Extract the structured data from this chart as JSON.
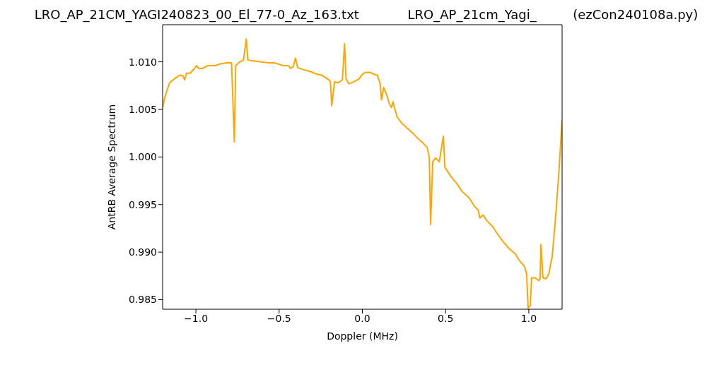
{
  "chart_data": {
    "type": "line",
    "title": "LRO_AP_21CM_YAGI240823_00_El_77-0_Az_163.txt            LRO_AP_21cm_Yagi_         (ezCon240108a.py)",
    "xlabel": "Doppler (MHz)",
    "ylabel": "AntRB Average Spectrum",
    "x": [
      -1.2,
      -1.188,
      -1.158,
      -1.115,
      -1.094,
      -1.077,
      -1.068,
      -1.056,
      -1.034,
      -1.009,
      -0.996,
      -0.983,
      -0.962,
      -0.927,
      -0.885,
      -0.85,
      -0.816,
      -0.786,
      -0.769,
      -0.761,
      -0.735,
      -0.714,
      -0.697,
      -0.688,
      -0.658,
      -0.615,
      -0.56,
      -0.53,
      -0.474,
      -0.444,
      -0.432,
      -0.415,
      -0.402,
      -0.389,
      -0.359,
      -0.316,
      -0.274,
      -0.244,
      -0.201,
      -0.192,
      -0.184,
      -0.167,
      -0.145,
      -0.12,
      -0.107,
      -0.098,
      -0.081,
      -0.051,
      -0.021,
      0.0,
      0.021,
      0.047,
      0.068,
      0.09,
      0.107,
      0.115,
      0.128,
      0.145,
      0.162,
      0.175,
      0.184,
      0.209,
      0.239,
      0.278,
      0.303,
      0.342,
      0.363,
      0.389,
      0.402,
      0.41,
      0.423,
      0.44,
      0.462,
      0.487,
      0.496,
      0.534,
      0.568,
      0.598,
      0.641,
      0.675,
      0.697,
      0.705,
      0.726,
      0.748,
      0.782,
      0.812,
      0.846,
      0.88,
      0.919,
      0.94,
      0.974,
      0.987,
      0.996,
      1.009,
      1.017,
      1.038,
      1.06,
      1.068,
      1.073,
      1.085,
      1.103,
      1.12,
      1.141,
      1.158,
      1.179,
      1.2
    ],
    "series": [
      {
        "color": "#ffa500",
        "values": [
          1.0051,
          1.0062,
          1.0078,
          1.0084,
          1.0086,
          1.0085,
          1.0081,
          1.0088,
          1.0088,
          1.0093,
          1.0096,
          1.0093,
          1.0093,
          1.0096,
          1.0096,
          1.0098,
          1.0099,
          1.0099,
          1.0016,
          1.0096,
          1.01,
          1.0102,
          1.0124,
          1.0102,
          1.0101,
          1.01,
          1.0099,
          1.0099,
          1.0096,
          1.0096,
          1.0093,
          1.0095,
          1.0104,
          1.0094,
          1.0092,
          1.009,
          1.0087,
          1.0086,
          1.0081,
          1.0079,
          1.0054,
          1.0079,
          1.0078,
          1.0081,
          1.0119,
          1.0082,
          1.0077,
          1.0079,
          1.0082,
          1.0087,
          1.0089,
          1.0089,
          1.0087,
          1.0086,
          1.0077,
          1.006,
          1.0073,
          1.0066,
          1.0056,
          1.0052,
          1.0058,
          1.0042,
          1.0035,
          1.0029,
          1.0025,
          1.0018,
          1.0015,
          1.001,
          1.0,
          0.9929,
          0.9995,
          0.9999,
          0.9995,
          1.0022,
          0.9989,
          0.9979,
          0.9972,
          0.9964,
          0.9957,
          0.9948,
          0.9944,
          0.9936,
          0.9939,
          0.9933,
          0.9927,
          0.9919,
          0.9911,
          0.9904,
          0.9898,
          0.9892,
          0.9885,
          0.9877,
          0.9841,
          0.9844,
          0.9873,
          0.9873,
          0.987,
          0.9872,
          0.9908,
          0.9873,
          0.9872,
          0.9877,
          0.9896,
          0.993,
          0.9979,
          1.0039
        ]
      }
    ],
    "xlim": [
      -1.2,
      1.2
    ],
    "xticks": [
      {
        "value": -1,
        "label": "−1.0"
      },
      {
        "value": -0.5,
        "label": "−0.5"
      },
      {
        "value": 0,
        "label": "0.0"
      },
      {
        "value": 0.5,
        "label": "0.5"
      },
      {
        "value": 1,
        "label": "1.0"
      }
    ],
    "ylim": [
      0.984,
      1.0139
    ],
    "yticks": [
      0.985,
      {
        "value": 0.99,
        "label": "0.990"
      },
      0.995,
      {
        "value": 1.0,
        "label": "1.000"
      },
      1.005,
      {
        "value": 1.01,
        "label": "1.010"
      }
    ],
    "line_style": "solid"
  }
}
